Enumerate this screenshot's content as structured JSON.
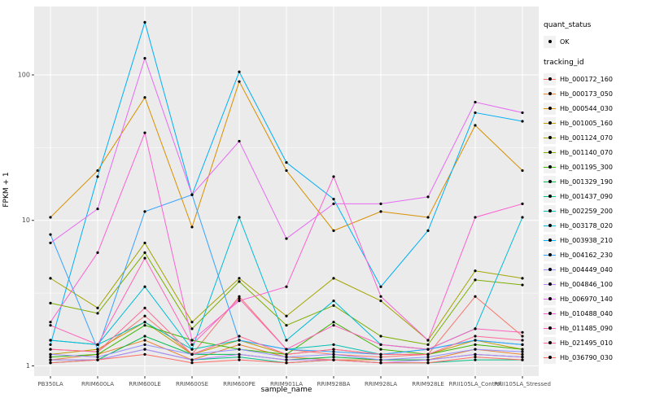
{
  "figure": {
    "background": "#FFFFFF",
    "panel_background": "#EBEBEB",
    "gridline_color": "#FFFFFF",
    "tick_color": "#333333",
    "tick_label_color": "#4D4D4D",
    "point_color": "#000000"
  },
  "legend": {
    "quant_title": "quant_status",
    "quant_value": "OK",
    "tracking_title": "tracking_id"
  },
  "chart_data": {
    "type": "line",
    "title": "",
    "xlabel": "sample_name",
    "ylabel": "FPKM + 1",
    "y_scale": "log10",
    "y_ticks": [
      1,
      10,
      100
    ],
    "y_domain": [
      1,
      280
    ],
    "grid": true,
    "legend_position": "right",
    "point_shape": "filled-black-circle",
    "categories": [
      "PB350LA",
      "RRIM600LA",
      "RRIM600LE",
      "RRIM600SE",
      "RRIM600PE",
      "RRIM901LA",
      "RRIM928BA",
      "RRIM928LA",
      "RRIM928LE",
      "RRII105LA_Control",
      "RRII105LA_Stressed"
    ],
    "series": [
      {
        "name": "Hb_000172_160",
        "color": "#F8766D",
        "values": [
          1.3,
          1.25,
          2.2,
          1.2,
          3.0,
          1.3,
          1.2,
          1.15,
          1.2,
          3.0,
          1.6
        ]
      },
      {
        "name": "Hb_000173_050",
        "color": "#EA8331",
        "values": [
          1.1,
          1.2,
          1.5,
          1.1,
          1.4,
          1.15,
          1.1,
          1.1,
          1.1,
          1.3,
          1.2
        ]
      },
      {
        "name": "Hb_000544_030",
        "color": "#D89000",
        "values": [
          10.5,
          22,
          70,
          9,
          90,
          22,
          8.5,
          11.5,
          10.5,
          45,
          22
        ]
      },
      {
        "name": "Hb_001005_160",
        "color": "#C09B00",
        "values": [
          1.2,
          1.3,
          2.0,
          1.2,
          1.5,
          1.2,
          1.3,
          1.2,
          1.2,
          1.5,
          1.3
        ]
      },
      {
        "name": "Hb_001124_070",
        "color": "#A3A500",
        "values": [
          4.0,
          2.5,
          7.0,
          2.0,
          4.0,
          2.2,
          4.0,
          2.8,
          1.5,
          4.5,
          4.0
        ]
      },
      {
        "name": "Hb_001140_070",
        "color": "#7CAE00",
        "values": [
          2.7,
          2.3,
          6.0,
          1.8,
          3.8,
          1.9,
          2.6,
          1.6,
          1.4,
          3.9,
          3.6
        ]
      },
      {
        "name": "Hb_001195_300",
        "color": "#39B600",
        "values": [
          1.15,
          1.2,
          1.9,
          1.5,
          1.3,
          1.2,
          2.0,
          1.3,
          1.2,
          1.4,
          1.3
        ]
      },
      {
        "name": "Hb_001329_190",
        "color": "#00BB4E",
        "values": [
          1.1,
          1.1,
          1.6,
          1.2,
          1.2,
          1.1,
          1.15,
          1.1,
          1.1,
          1.2,
          1.15
        ]
      },
      {
        "name": "Hb_001437_090",
        "color": "#00C087",
        "values": [
          1.05,
          1.1,
          1.3,
          1.1,
          1.15,
          1.05,
          1.1,
          1.05,
          1.05,
          1.1,
          1.1
        ]
      },
      {
        "name": "Hb_002259_200",
        "color": "#00C0B4",
        "values": [
          1.5,
          1.4,
          2.0,
          1.3,
          1.5,
          1.3,
          1.4,
          1.2,
          1.3,
          1.5,
          1.4
        ]
      },
      {
        "name": "Hb_003178_020",
        "color": "#00BCD8",
        "values": [
          1.5,
          1.4,
          3.5,
          1.3,
          10.5,
          1.5,
          2.8,
          1.4,
          1.3,
          1.8,
          10.5
        ]
      },
      {
        "name": "Hb_003938_210",
        "color": "#00B0F6",
        "values": [
          1.4,
          20,
          230,
          15,
          105,
          25,
          14,
          3.5,
          8.5,
          55,
          48
        ]
      },
      {
        "name": "Hb_004162_230",
        "color": "#35A2FF",
        "values": [
          8.0,
          1.3,
          11.5,
          15,
          1.5,
          1.3,
          1.25,
          1.2,
          1.3,
          1.5,
          1.4
        ]
      },
      {
        "name": "Hb_004449_040",
        "color": "#9590FF",
        "values": [
          1.2,
          1.15,
          1.4,
          1.2,
          1.3,
          1.15,
          1.2,
          1.1,
          1.15,
          1.3,
          1.25
        ]
      },
      {
        "name": "Hb_004846_100",
        "color": "#BF80FF",
        "values": [
          1.1,
          1.1,
          1.3,
          1.1,
          1.2,
          1.1,
          1.1,
          1.05,
          1.1,
          1.2,
          1.15
        ]
      },
      {
        "name": "Hb_006970_140",
        "color": "#E76BF3",
        "values": [
          7.0,
          12,
          130,
          15,
          35,
          7.5,
          13,
          13,
          14.5,
          65,
          55
        ]
      },
      {
        "name": "Hb_010488_040",
        "color": "#FD61D1",
        "values": [
          2.0,
          6.0,
          40,
          1.5,
          2.8,
          3.5,
          20,
          3.0,
          1.5,
          10.5,
          13
        ]
      },
      {
        "name": "Hb_011485_090",
        "color": "#FF62BC",
        "values": [
          1.9,
          1.4,
          5.5,
          1.4,
          2.9,
          1.3,
          1.9,
          1.4,
          1.3,
          1.8,
          1.7
        ]
      },
      {
        "name": "Hb_021495_010",
        "color": "#FF6A98",
        "values": [
          1.3,
          1.25,
          2.5,
          1.2,
          1.6,
          1.2,
          1.3,
          1.2,
          1.2,
          1.6,
          1.5
        ]
      },
      {
        "name": "Hb_036790_030",
        "color": "#FF6C67",
        "values": [
          1.05,
          1.1,
          1.2,
          1.05,
          1.1,
          1.05,
          1.1,
          1.05,
          1.05,
          1.15,
          1.1
        ]
      }
    ]
  }
}
